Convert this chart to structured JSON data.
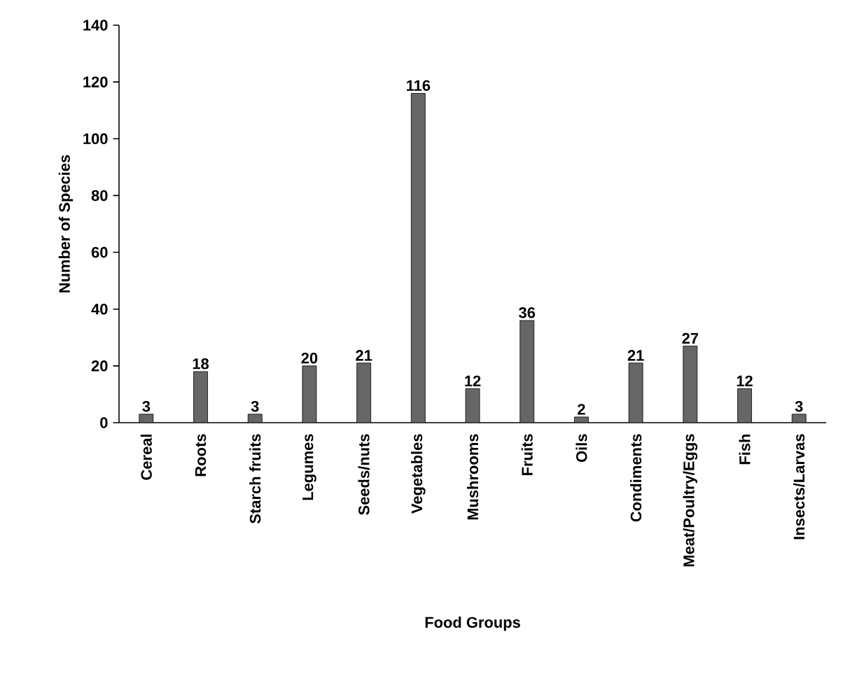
{
  "chart_data": {
    "type": "bar",
    "xlabel": "Food Groups",
    "ylabel": "Number of Species",
    "categories": [
      "Cereal",
      "Roots",
      "Starch fruits",
      "Legumes",
      "Seeds/nuts",
      "Vegetables",
      "Mushrooms",
      "Fruits",
      "Oils",
      "Condiments",
      "Meat/Poultry/Eggs",
      "Fish",
      "Insects/Larvas"
    ],
    "values": [
      3,
      18,
      3,
      20,
      21,
      116,
      12,
      36,
      2,
      21,
      27,
      12,
      3
    ],
    "color": "#666666",
    "ylim": [
      0,
      140
    ],
    "yticks": [
      0,
      20,
      40,
      60,
      80,
      100,
      120,
      140
    ],
    "data_labels": true,
    "grid": false
  }
}
